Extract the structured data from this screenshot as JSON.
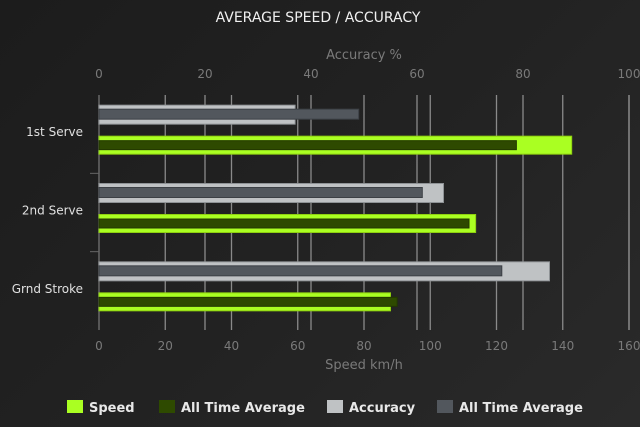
{
  "chart_data": {
    "type": "bar",
    "orientation": "horizontal",
    "title": "AVERAGE SPEED / ACCURACY",
    "categories": [
      "1st Serve",
      "2nd Serve",
      "Grnd Stroke"
    ],
    "speed_axis": {
      "label": "Speed km/h",
      "position": "bottom",
      "range": [
        0,
        160
      ],
      "ticks": [
        0,
        20,
        40,
        60,
        80,
        100,
        120,
        140,
        160
      ]
    },
    "accuracy_axis": {
      "label": "Accuracy %",
      "position": "top",
      "range": [
        0,
        100
      ],
      "ticks": [
        0,
        20,
        40,
        60,
        80,
        100
      ]
    },
    "series": [
      {
        "name": "Speed",
        "axis": "speed",
        "color": "#aaff22",
        "values": [
          142.7,
          113.7,
          88
        ]
      },
      {
        "name": "All Time Average",
        "axis": "speed",
        "color": "#2e4a00",
        "values": [
          126,
          111.7,
          90
        ]
      },
      {
        "name": "Accuracy",
        "axis": "accuracy",
        "color": "#bfc2c4",
        "values": [
          37,
          65,
          85
        ]
      },
      {
        "name": "All Time Average",
        "axis": "accuracy",
        "color": "#52575d",
        "values": [
          49,
          61,
          76
        ]
      }
    ],
    "grid": true,
    "legend": "bottom"
  }
}
